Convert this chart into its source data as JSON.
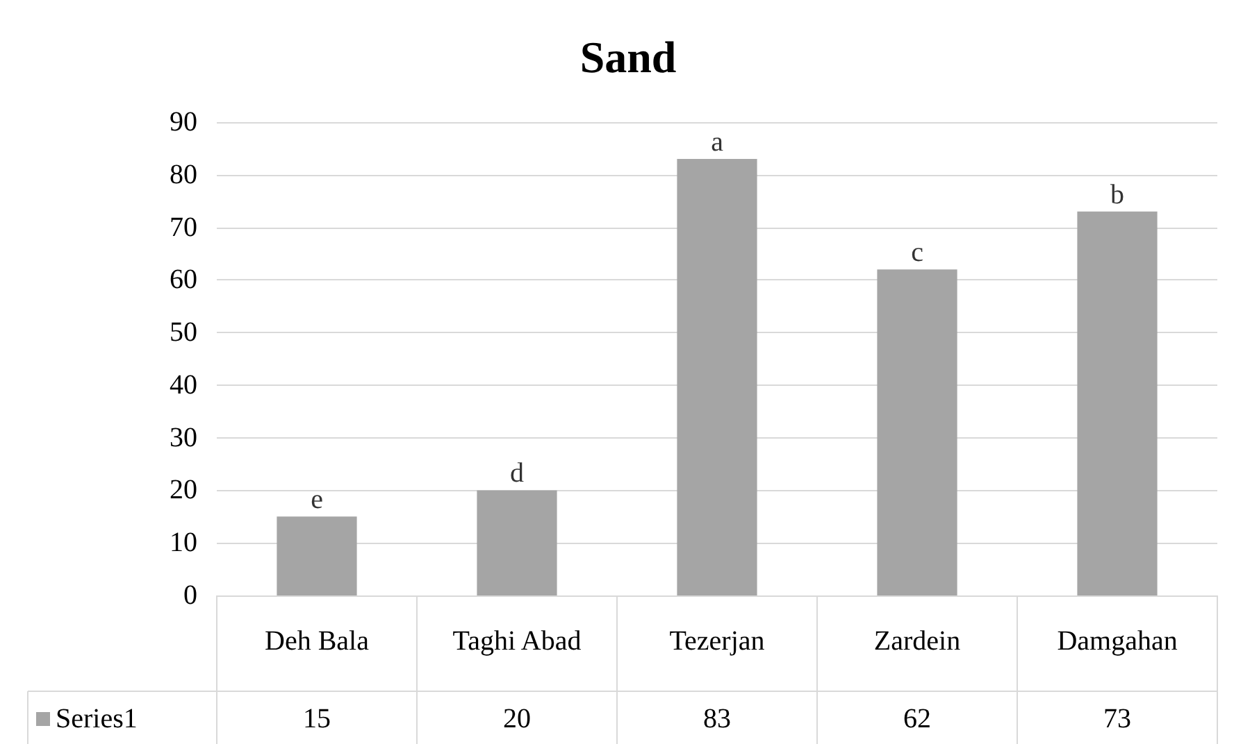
{
  "chart_data": {
    "type": "bar",
    "title": "Sand",
    "categories": [
      "Deh Bala",
      "Taghi Abad",
      "Tezerjan",
      "Zardein",
      "Damgahan"
    ],
    "series": [
      {
        "name": "Series1",
        "color": "#a5a5a5",
        "values": [
          15,
          20,
          83,
          62,
          73
        ]
      }
    ],
    "ylim": [
      0,
      90
    ],
    "yticks": [
      0,
      10,
      20,
      30,
      40,
      50,
      60,
      70,
      80,
      90
    ],
    "grid": "y",
    "data_labels": true,
    "legend": "bottom",
    "annotations": [
      {
        "text": "e",
        "x": "Deh Bala",
        "y": 15
      },
      {
        "text": "d",
        "x": "Taghi Abad",
        "y": 20
      },
      {
        "text": "a",
        "x": "Tezerjan",
        "y": 83
      },
      {
        "text": "c",
        "x": "Zardein",
        "y": 62
      },
      {
        "text": "b",
        "x": "Damgahan",
        "y": 73
      }
    ]
  }
}
